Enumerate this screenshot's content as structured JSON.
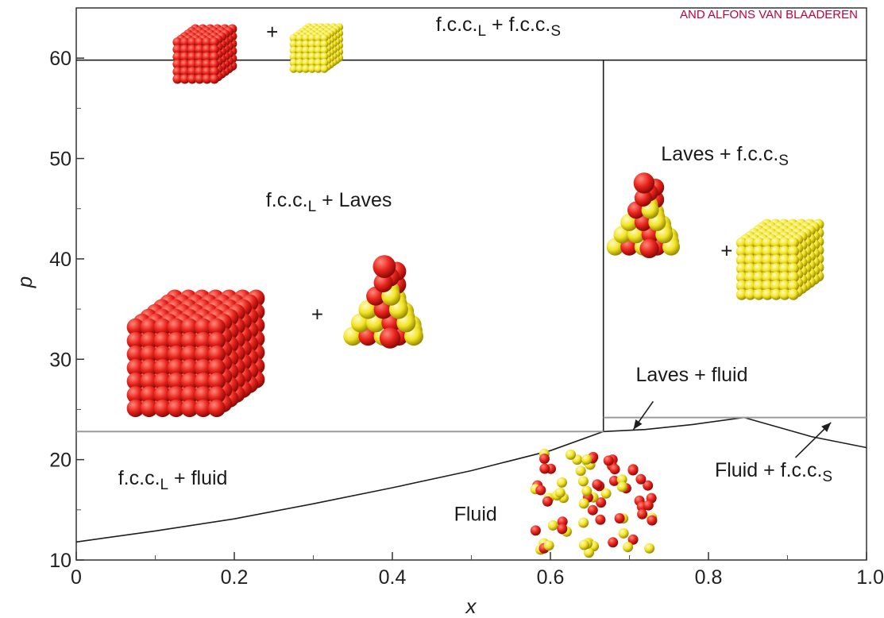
{
  "credit": "AND ALFONS VAN BLAADEREN",
  "chart_data": {
    "type": "line",
    "title": "",
    "xlabel": "x",
    "ylabel": "p",
    "xlim": [
      0,
      1.0
    ],
    "ylim": [
      10,
      65
    ],
    "x_ticks": [
      {
        "value": 0,
        "label": "0"
      },
      {
        "value": 0.2,
        "label": "0.2"
      },
      {
        "value": 0.4,
        "label": "0.4"
      },
      {
        "value": 0.6,
        "label": "0.6"
      },
      {
        "value": 0.8,
        "label": "0.8"
      },
      {
        "value": 1.0,
        "label": "1.0"
      }
    ],
    "y_ticks": [
      {
        "value": 10,
        "label": "10"
      },
      {
        "value": 20,
        "label": "20"
      },
      {
        "value": 30,
        "label": "30"
      },
      {
        "value": 40,
        "label": "40"
      },
      {
        "value": 50,
        "label": "50"
      },
      {
        "value": 60,
        "label": "60"
      }
    ],
    "grid": false,
    "lines": [
      {
        "kind": "black",
        "x": [
          0,
          1.0
        ],
        "y": [
          59.8,
          59.8
        ]
      },
      {
        "kind": "black",
        "x": [
          0.667,
          0.667
        ],
        "y": [
          22.8,
          59.8
        ]
      },
      {
        "kind": "black",
        "x": [
          0,
          0.1,
          0.2,
          0.3,
          0.4,
          0.5,
          0.6,
          0.667
        ],
        "y": [
          11.8,
          12.9,
          14.1,
          15.6,
          17.2,
          18.9,
          20.9,
          22.8
        ]
      },
      {
        "kind": "black",
        "x": [
          0.667,
          0.72,
          0.78,
          0.845
        ],
        "y": [
          22.8,
          23.0,
          23.5,
          24.2
        ]
      },
      {
        "kind": "black",
        "x": [
          0.845,
          0.93,
          1.0
        ],
        "y": [
          24.2,
          22.3,
          21.2
        ]
      },
      {
        "kind": "grey",
        "x": [
          0,
          0.667
        ],
        "y": [
          22.8,
          22.8
        ]
      },
      {
        "kind": "grey",
        "x": [
          0.667,
          1.0
        ],
        "y": [
          24.2,
          24.2
        ]
      }
    ],
    "annotations": [
      {
        "id": "fcc-fcc",
        "segments": [
          {
            "text": "f.c.c."
          },
          {
            "text": "L",
            "sub": true
          },
          {
            "text": " + f.c.c."
          },
          {
            "text": "S",
            "sub": true
          }
        ],
        "x": 0.455,
        "y": 62.7
      },
      {
        "id": "fcc-laves",
        "segments": [
          {
            "text": "f.c.c."
          },
          {
            "text": "L",
            "sub": true
          },
          {
            "text": " + Laves"
          }
        ],
        "x": 0.24,
        "y": 45.2
      },
      {
        "id": "laves-fcc",
        "segments": [
          {
            "text": "Laves + f.c.c."
          },
          {
            "text": "S",
            "sub": true
          }
        ],
        "x": 0.74,
        "y": 49.8
      },
      {
        "id": "laves-fluid",
        "segments": [
          {
            "text": "Laves + fluid"
          }
        ],
        "x": 0.708,
        "y": 27.8
      },
      {
        "id": "fcc-fluid",
        "segments": [
          {
            "text": "f.c.c."
          },
          {
            "text": "L",
            "sub": true
          },
          {
            "text": " + fluid"
          }
        ],
        "x": 0.053,
        "y": 17.5
      },
      {
        "id": "fluid",
        "segments": [
          {
            "text": "Fluid"
          }
        ],
        "x": 0.478,
        "y": 13.9
      },
      {
        "id": "fluid-fcc",
        "segments": [
          {
            "text": "Fluid + f.c.c."
          },
          {
            "text": "S",
            "sub": true
          }
        ],
        "x": 0.808,
        "y": 18.3
      }
    ],
    "arrows": [
      {
        "id": "arrow-laves-fluid",
        "from": [
          0.73,
          25.8
        ],
        "to": [
          0.705,
          23.0
        ]
      },
      {
        "id": "arrow-fluid-fcc",
        "from": [
          0.91,
          20.2
        ],
        "to": [
          0.955,
          23.7
        ]
      }
    ],
    "plus_signs": [
      {
        "x": 0.248,
        "y": 61.9
      },
      {
        "x": 0.305,
        "y": 33.8
      },
      {
        "x": 0.823,
        "y": 40.1
      }
    ],
    "crystals": [
      {
        "id": "fcc-L-small",
        "type": "cube",
        "color": "#e8231d",
        "x": 0.128,
        "y": 61.6,
        "r": 6,
        "n": 6
      },
      {
        "id": "fcc-S-small",
        "type": "cube",
        "color": "#f2e423",
        "x": 0.275,
        "y": 62.0,
        "r": 5,
        "n": 6
      },
      {
        "id": "fcc-L-large",
        "type": "cube",
        "color": "#e8231d",
        "x": 0.075,
        "y": 33.2,
        "r": 11,
        "n": 7
      },
      {
        "id": "laves-1",
        "type": "pyramid",
        "x": 0.35,
        "y": 32.3,
        "r": 12
      },
      {
        "id": "laves-2",
        "type": "pyramid",
        "x": 0.682,
        "y": 41.2,
        "r": 11
      },
      {
        "id": "fcc-S-large",
        "type": "cube",
        "color": "#f2e423",
        "x": 0.842,
        "y": 41.6,
        "r": 7,
        "n": 7
      },
      {
        "id": "fluid-blob",
        "type": "fluid",
        "x": 0.58,
        "y": 20.8,
        "w": 0.15,
        "h": 10.4,
        "r": 6.5
      }
    ]
  }
}
